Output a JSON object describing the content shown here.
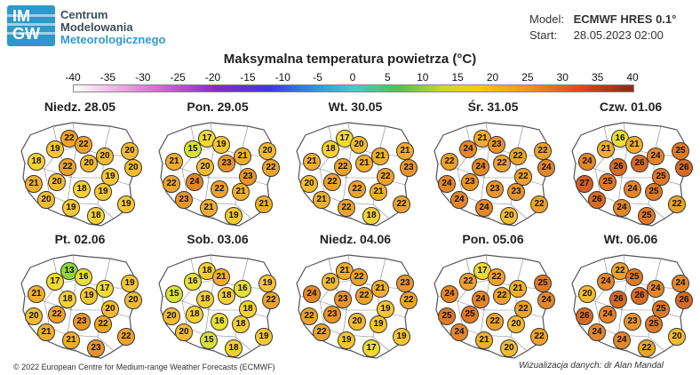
{
  "logo": {
    "mark_top": "IM",
    "mark_bottom": "GW",
    "line1": "Centrum",
    "line2": "Modelowania",
    "line3": "Meteorologicznego"
  },
  "model": {
    "model_label": "Model:",
    "model_value": "ECMWF HRES 0.1°",
    "start_label": "Start:",
    "start_value": "28.05.2023 02:00"
  },
  "title": "Maksymalna temperatura powietrza (°C)",
  "scale": {
    "ticks": [
      "-40",
      "-35",
      "-30",
      "-25",
      "-20",
      "-15",
      "-10",
      "-5",
      "0",
      "5",
      "10",
      "15",
      "20",
      "25",
      "30",
      "35",
      "40"
    ],
    "min": -40,
    "max": 40
  },
  "color_stops": {
    "13": "#8fd63a",
    "15": "#d6e03a",
    "16": "#e8df35",
    "17": "#f0da33",
    "18": "#f5d033",
    "19": "#f6c631",
    "20": "#f4bb2f",
    "21": "#f1ae2c",
    "22": "#eea22a",
    "23": "#ea9428",
    "24": "#e58626",
    "25": "#e07824",
    "26": "#d96a22",
    "27": "#d45e20"
  },
  "panels": [
    {
      "label": "Niedz. 28.05",
      "values": [
        22,
        19,
        22,
        18,
        20,
        20,
        22,
        20,
        20,
        21,
        20,
        19,
        20,
        18,
        19,
        19,
        19,
        18
      ]
    },
    {
      "label": "Pon. 29.05",
      "values": [
        17,
        15,
        19,
        21,
        21,
        20,
        20,
        23,
        22,
        22,
        24,
        23,
        23,
        22,
        21,
        21,
        21,
        19
      ]
    },
    {
      "label": "Wt. 30.05",
      "values": [
        17,
        18,
        20,
        21,
        21,
        21,
        22,
        21,
        23,
        20,
        22,
        22,
        21,
        22,
        21,
        22,
        22,
        18
      ]
    },
    {
      "label": "Śr. 31.05",
      "values": [
        21,
        24,
        23,
        22,
        22,
        22,
        24,
        22,
        24,
        24,
        23,
        22,
        24,
        23,
        23,
        24,
        22,
        20
      ]
    },
    {
      "label": "Czw. 01.06",
      "values": [
        16,
        21,
        21,
        24,
        24,
        25,
        26,
        26,
        26,
        27,
        25,
        25,
        26,
        24,
        25,
        24,
        22,
        25
      ]
    },
    {
      "label": "Pt. 02.06",
      "values": [
        13,
        17,
        16,
        21,
        17,
        19,
        18,
        19,
        20,
        20,
        22,
        20,
        21,
        23,
        22,
        21,
        22,
        23
      ]
    },
    {
      "label": "Sob. 03.06",
      "values": [
        18,
        16,
        21,
        15,
        16,
        19,
        18,
        18,
        22,
        20,
        18,
        18,
        20,
        16,
        18,
        15,
        19,
        18
      ]
    },
    {
      "label": "Niedz. 04.06",
      "values": [
        21,
        20,
        22,
        24,
        21,
        23,
        23,
        22,
        22,
        22,
        23,
        19,
        22,
        20,
        19,
        19,
        19,
        17
      ]
    },
    {
      "label": "Pon. 05.06",
      "values": [
        17,
        22,
        22,
        24,
        21,
        25,
        24,
        22,
        24,
        25,
        25,
        22,
        24,
        22,
        20,
        21,
        22,
        20
      ]
    },
    {
      "label": "Wt. 06.06",
      "values": [
        22,
        24,
        25,
        20,
        24,
        24,
        26,
        26,
        26,
        26,
        24,
        25,
        24,
        23,
        25,
        24,
        20,
        22
      ]
    }
  ],
  "footer_left": "© 2022 European Centre for Medium-range Weather Forecasts (ECMWF)",
  "footer_right": "Wizualizacja danych: dr Alan Mandal"
}
